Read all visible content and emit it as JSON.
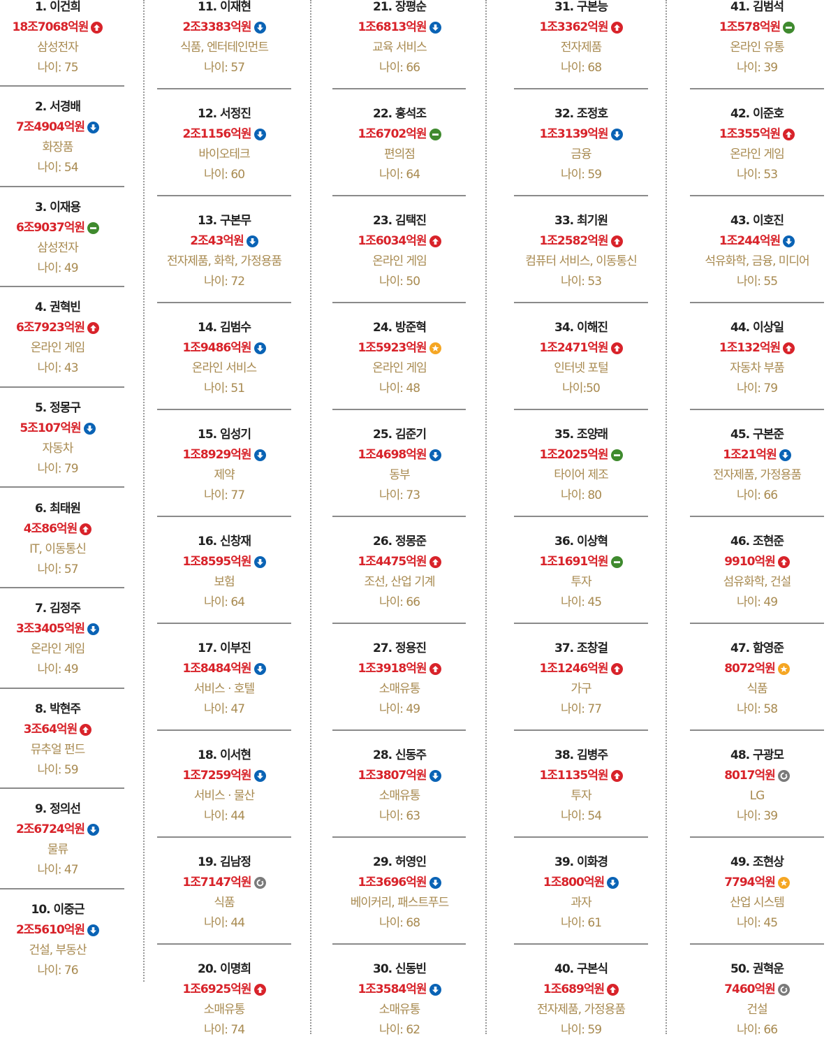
{
  "colors": {
    "name": "#222222",
    "wealth": "#d8232a",
    "detail": "#a88a50",
    "up": "#d8232a",
    "down": "#0a63b5",
    "same": "#3f8a2e",
    "new": "#f5a623",
    "returning": "#7a7a7a"
  },
  "columns": [
    [
      {
        "title": "1. 이건희",
        "wealth": "18조7068억원",
        "change": "up",
        "sector": "삼성전자",
        "age": "나이: 75"
      },
      {
        "title": "2. 서경배",
        "wealth": "7조4904억원",
        "change": "down",
        "sector": "화장품",
        "age": "나이: 54"
      },
      {
        "title": "3. 이재용",
        "wealth": "6조9037억원",
        "change": "same",
        "sector": "삼성전자",
        "age": "나이: 49"
      },
      {
        "title": "4. 권혁빈",
        "wealth": "6조7923억원",
        "change": "up",
        "sector": "온라인 게임",
        "age": "나이: 43"
      },
      {
        "title": "5. 정몽구",
        "wealth": "5조107억원",
        "change": "down",
        "sector": "자동차",
        "age": "나이: 79"
      },
      {
        "title": "6. 최태원",
        "wealth": "4조86억원",
        "change": "up",
        "sector": "IT, 이동통신",
        "age": "나이: 57"
      },
      {
        "title": "7. 김정주",
        "wealth": "3조3405억원",
        "change": "down",
        "sector": "온라인 게임",
        "age": "나이: 49"
      },
      {
        "title": "8. 박현주",
        "wealth": "3조64억원",
        "change": "up",
        "sector": "뮤추얼 펀드",
        "age": "나이: 59"
      },
      {
        "title": "9. 정의선",
        "wealth": "2조6724억원",
        "change": "down",
        "sector": "물류",
        "age": "나이: 47"
      },
      {
        "title": "10. 이중근",
        "wealth": "2조5610억원",
        "change": "down",
        "sector": "건설, 부동산",
        "age": "나이: 76"
      }
    ],
    [
      {
        "title": "11. 이재현",
        "wealth": "2조3383억원",
        "change": "down",
        "sector": "식품, 엔터테인먼트",
        "age": "나이: 57"
      },
      {
        "title": "12. 서정진",
        "wealth": "2조1156억원",
        "change": "down",
        "sector": "바이오테크",
        "age": "나이: 60"
      },
      {
        "title": "13. 구본무",
        "wealth": "2조43억원",
        "change": "down",
        "sector": "전자제품, 화학, 가정용품",
        "age": "나이: 72"
      },
      {
        "title": "14. 김범수",
        "wealth": "1조9486억원",
        "change": "down",
        "sector": "온라인 서비스",
        "age": "나이: 51"
      },
      {
        "title": "15. 임성기",
        "wealth": "1조8929억원",
        "change": "down",
        "sector": "제약",
        "age": "나이: 77"
      },
      {
        "title": "16. 신창재",
        "wealth": "1조8595억원",
        "change": "down",
        "sector": "보험",
        "age": "나이: 64"
      },
      {
        "title": "17. 이부진",
        "wealth": "1조8484억원",
        "change": "down",
        "sector": "서비스 · 호텔",
        "age": "나이: 47"
      },
      {
        "title": "18. 이서현",
        "wealth": "1조7259억원",
        "change": "down",
        "sector": "서비스 · 물산",
        "age": "나이: 44"
      },
      {
        "title": "19. 김남정",
        "wealth": "1조7147억원",
        "change": "returning",
        "sector": "식품",
        "age": "나이: 44"
      },
      {
        "title": "20. 이명희",
        "wealth": "1조6925억원",
        "change": "up",
        "sector": "소매유통",
        "age": "나이: 74"
      }
    ],
    [
      {
        "title": "21. 장평순",
        "wealth": "1조6813억원",
        "change": "down",
        "sector": "교육 서비스",
        "age": "나이: 66"
      },
      {
        "title": "22. 홍석조",
        "wealth": "1조6702억원",
        "change": "same",
        "sector": "편의점",
        "age": "나이: 64"
      },
      {
        "title": "23. 김택진",
        "wealth": "1조6034억원",
        "change": "up",
        "sector": "온라인 게임",
        "age": "나이: 50"
      },
      {
        "title": "24. 방준혁",
        "wealth": "1조5923억원",
        "change": "new",
        "sector": "온라인 게임",
        "age": "나이: 48"
      },
      {
        "title": "25. 김준기",
        "wealth": "1조4698억원",
        "change": "down",
        "sector": "동부",
        "age": "나이: 73"
      },
      {
        "title": "26. 정몽준",
        "wealth": "1조4475억원",
        "change": "up",
        "sector": "조선, 산업 기계",
        "age": "나이: 66"
      },
      {
        "title": "27. 정용진",
        "wealth": "1조3918억원",
        "change": "up",
        "sector": "소매유통",
        "age": "나이: 49"
      },
      {
        "title": "28. 신동주",
        "wealth": "1조3807억원",
        "change": "down",
        "sector": "소매유통",
        "age": "나이: 63"
      },
      {
        "title": "29. 허영인",
        "wealth": "1조3696억원",
        "change": "down",
        "sector": "베이커리, 패스트푸드",
        "age": "나이: 68"
      },
      {
        "title": "30. 신동빈",
        "wealth": "1조3584억원",
        "change": "down",
        "sector": "소매유통",
        "age": "나이: 62"
      }
    ],
    [
      {
        "title": "31. 구본능",
        "wealth": "1조3362억원",
        "change": "up",
        "sector": "전자제품",
        "age": "나이: 68"
      },
      {
        "title": "32. 조정호",
        "wealth": "1조3139억원",
        "change": "down",
        "sector": "금융",
        "age": "나이: 59"
      },
      {
        "title": "33. 최기원",
        "wealth": "1조2582억원",
        "change": "up",
        "sector": "컴퓨터 서비스, 이동통신",
        "age": "나이: 53"
      },
      {
        "title": "34. 이해진",
        "wealth": "1조2471억원",
        "change": "up",
        "sector": "인터넷 포털",
        "age": "나이:50"
      },
      {
        "title": "35. 조양래",
        "wealth": "1조2025억원",
        "change": "same",
        "sector": "타이어 제조",
        "age": "나이: 80"
      },
      {
        "title": "36. 이상혁",
        "wealth": "1조1691억원",
        "change": "same",
        "sector": "투자",
        "age": "나이: 45"
      },
      {
        "title": "37. 조창걸",
        "wealth": "1조1246억원",
        "change": "up",
        "sector": "가구",
        "age": "나이: 77"
      },
      {
        "title": "38. 김병주",
        "wealth": "1조1135억원",
        "change": "up",
        "sector": "투자",
        "age": "나이: 54"
      },
      {
        "title": "39. 이화경",
        "wealth": "1조800억원",
        "change": "down",
        "sector": "과자",
        "age": "나이: 61"
      },
      {
        "title": "40. 구본식",
        "wealth": "1조689억원",
        "change": "up",
        "sector": "전자제품, 가정용품",
        "age": "나이: 59"
      }
    ],
    [
      {
        "title": "41. 김범석",
        "wealth": "1조578억원",
        "change": "same",
        "sector": "온라인 유통",
        "age": "나이: 39"
      },
      {
        "title": "42. 이준호",
        "wealth": "1조355억원",
        "change": "up",
        "sector": "온라인 게임",
        "age": "나이: 53"
      },
      {
        "title": "43. 이호진",
        "wealth": "1조244억원",
        "change": "down",
        "sector": "석유화학, 금융, 미디어",
        "age": "나이: 55"
      },
      {
        "title": "44. 이상일",
        "wealth": "1조132억원",
        "change": "up",
        "sector": "자동차 부품",
        "age": "나이: 79"
      },
      {
        "title": "45. 구본준",
        "wealth": "1조21억원",
        "change": "down",
        "sector": "전자제품, 가정용품",
        "age": "나이: 66"
      },
      {
        "title": "46. 조현준",
        "wealth": "9910억원",
        "change": "up",
        "sector": "섬유화학, 건설",
        "age": "나이: 49"
      },
      {
        "title": "47. 함영준",
        "wealth": "8072억원",
        "change": "new",
        "sector": "식품",
        "age": "나이: 58"
      },
      {
        "title": "48. 구광모",
        "wealth": "8017억원",
        "change": "returning",
        "sector": "LG",
        "age": "나이: 39"
      },
      {
        "title": "49. 조현상",
        "wealth": "7794억원",
        "change": "new",
        "sector": "산업 시스템",
        "age": "나이: 45"
      },
      {
        "title": "50. 권혁운",
        "wealth": "7460억원",
        "change": "returning",
        "sector": "건설",
        "age": "나이: 66"
      }
    ]
  ]
}
